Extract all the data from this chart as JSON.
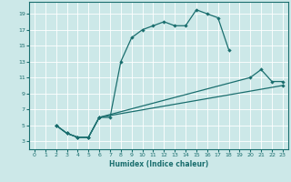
{
  "xlabel": "Humidex (Indice chaleur)",
  "bg_color": "#cce8e8",
  "grid_color": "#ffffff",
  "line_color": "#1a6e6e",
  "xlim": [
    -0.5,
    23.5
  ],
  "ylim": [
    2.0,
    20.5
  ],
  "xticks": [
    0,
    1,
    2,
    3,
    4,
    5,
    6,
    7,
    8,
    9,
    10,
    11,
    12,
    13,
    14,
    15,
    16,
    17,
    18,
    19,
    20,
    21,
    22,
    23
  ],
  "yticks": [
    3,
    5,
    7,
    9,
    11,
    13,
    15,
    17,
    19
  ],
  "line1_x": [
    2,
    3,
    4,
    5,
    6,
    7,
    8,
    9,
    10,
    11,
    12,
    13,
    14,
    15,
    16,
    17,
    18
  ],
  "line1_y": [
    5,
    4,
    3.5,
    3.5,
    6,
    6,
    13,
    16,
    17,
    17.5,
    18,
    17.5,
    17.5,
    19.5,
    19,
    18.5,
    14.5
  ],
  "line2_x": [
    2,
    3,
    4,
    5,
    6,
    20,
    21,
    22,
    23
  ],
  "line2_y": [
    5,
    4,
    3.5,
    3.5,
    6,
    11,
    12,
    10.5,
    10.5
  ],
  "line3_x": [
    2,
    3,
    4,
    5,
    6,
    23
  ],
  "line3_y": [
    5,
    4,
    3.5,
    3.5,
    6,
    10
  ]
}
